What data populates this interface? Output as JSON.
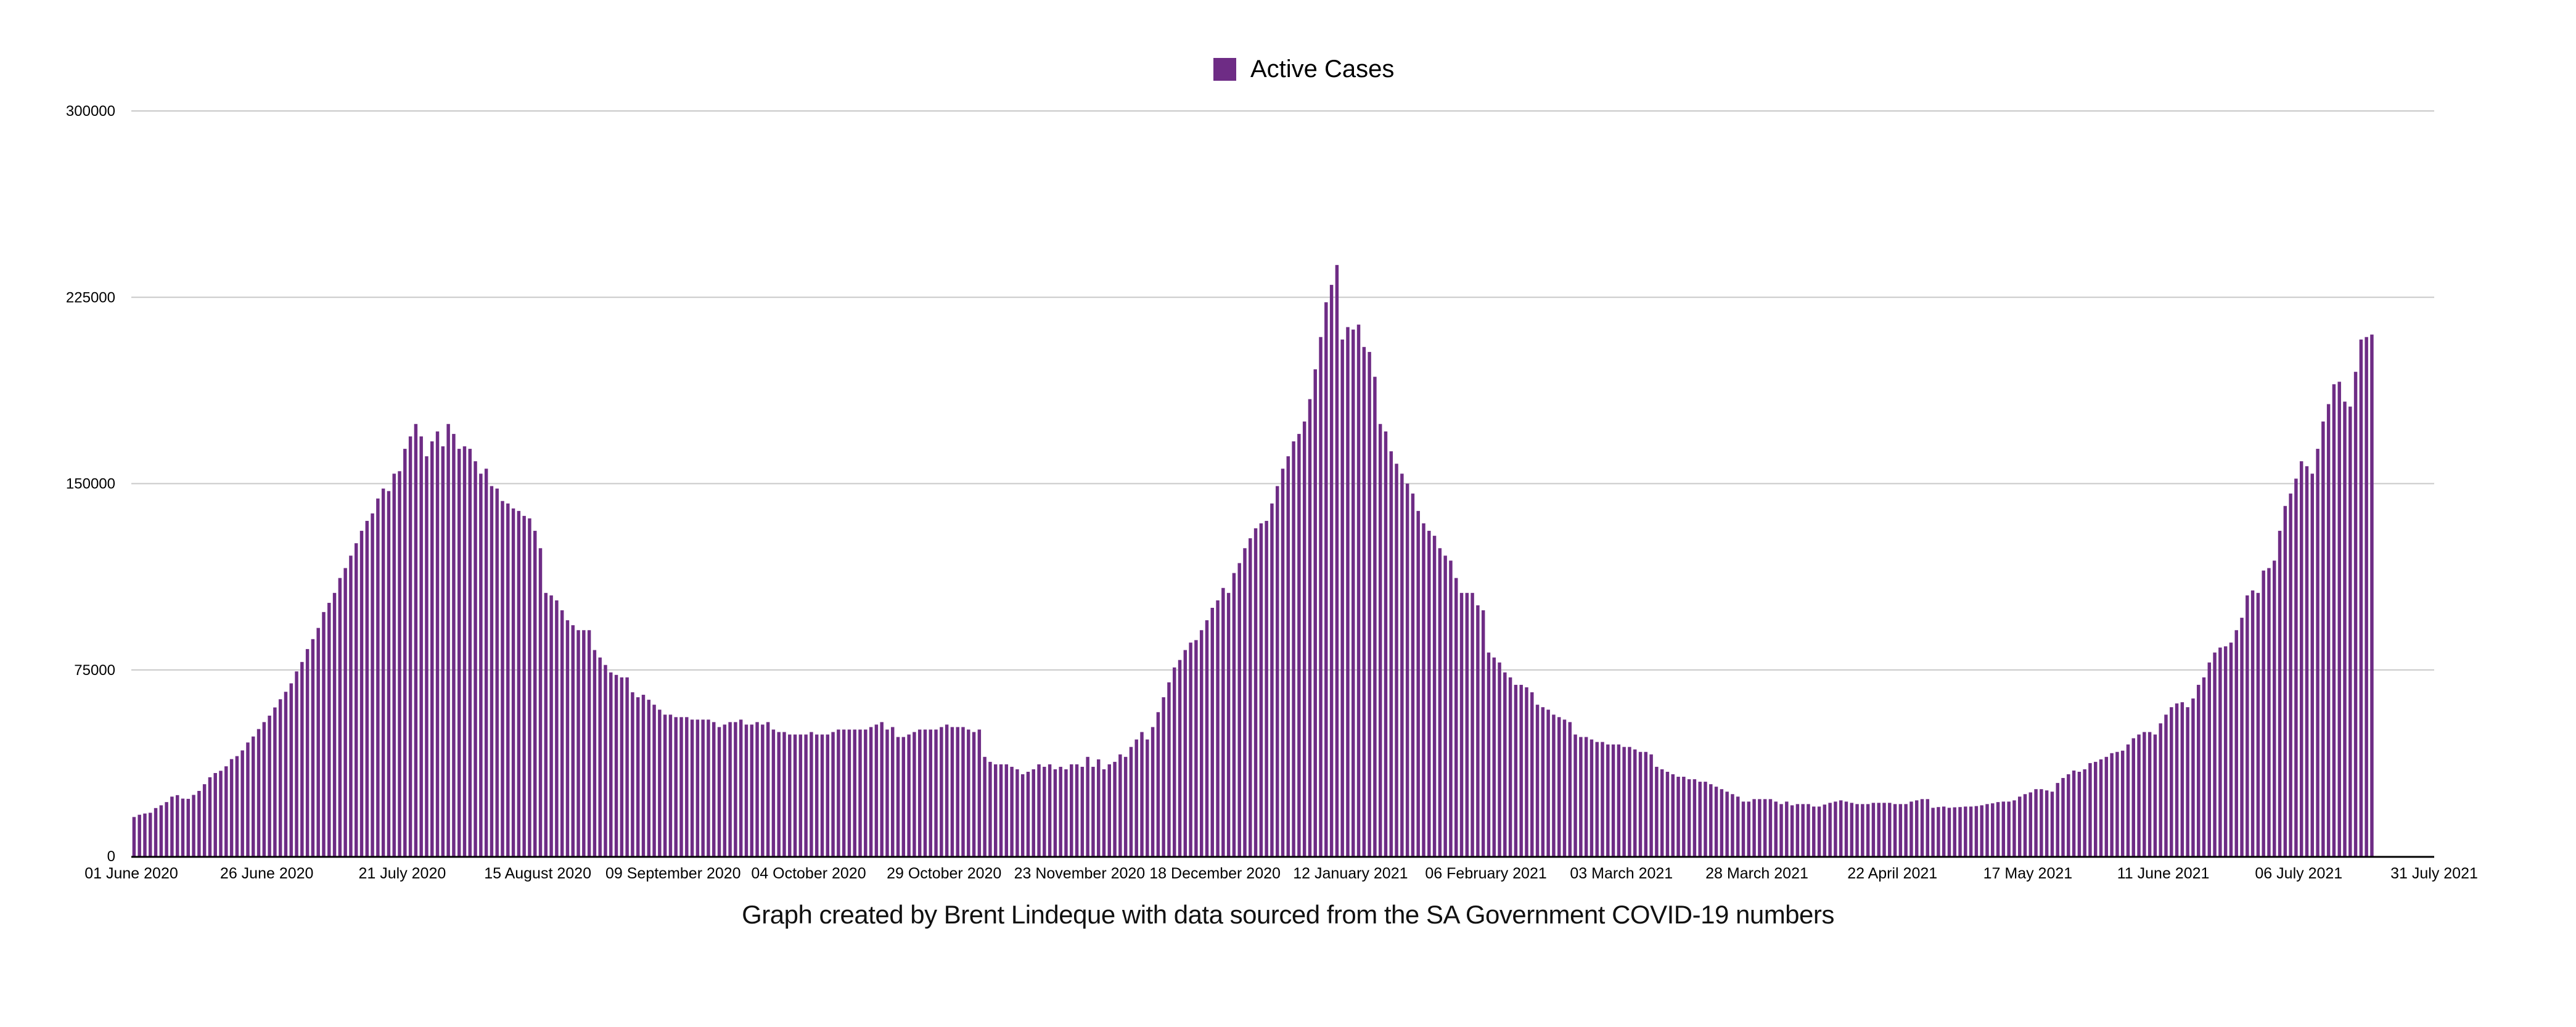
{
  "chart_data": {
    "type": "bar",
    "title": "",
    "legend": {
      "entries": [
        "Active Cases"
      ],
      "placement": "top-center"
    },
    "series_color": "#6e2c85",
    "xlabel": "",
    "ylabel": "",
    "ylim": [
      0,
      300000
    ],
    "y_ticks": [
      0,
      75000,
      150000,
      225000,
      300000
    ],
    "y_tick_labels": [
      "0",
      "75000",
      "150000",
      "225000",
      "300000"
    ],
    "grid": true,
    "x_range_days": 425,
    "x_tick_step_days": 25,
    "x_tick_labels": [
      "01 June 2020",
      "26 June 2020",
      "21 July 2020",
      "15 August 2020",
      "09 September 2020",
      "04 October 2020",
      "29 October 2020",
      "23 November 2020",
      "18 December 2020",
      "12 January 2021",
      "06 February 2021",
      "03 March 2021",
      "28 March 2021",
      "22 April 2021",
      "17 May 2021",
      "11 June 2021",
      "06 July 2021",
      "31 July 2021"
    ],
    "start_date": "01 June 2020",
    "series": [
      {
        "name": "Active Cases",
        "values": [
          15800,
          16700,
          17200,
          17500,
          19400,
          20500,
          21800,
          24000,
          24600,
          23200,
          23100,
          24700,
          26300,
          29000,
          31800,
          33500,
          34400,
          36200,
          39100,
          40300,
          42600,
          45800,
          48200,
          51200,
          54000,
          56600,
          59900,
          63200,
          66200,
          69600,
          74400,
          78200,
          83400,
          87400,
          91900,
          98300,
          102000,
          106000,
          112000,
          116000,
          121000,
          126000,
          131000,
          135000,
          138000,
          144000,
          148000,
          147000,
          154000,
          155000,
          164000,
          169000,
          174000,
          169000,
          161000,
          167000,
          171000,
          165000,
          174000,
          170000,
          164000,
          165000,
          164000,
          159000,
          154000,
          156000,
          149000,
          148000,
          143000,
          142000,
          140000,
          139000,
          137000,
          136000,
          131000,
          124000,
          106000,
          105000,
          103000,
          99000,
          95000,
          93000,
          91000,
          91000,
          91000,
          83000,
          80000,
          77000,
          74000,
          73000,
          72000,
          72000,
          66000,
          64000,
          65000,
          63000,
          61000,
          59000,
          57000,
          57000,
          56000,
          56000,
          56000,
          55000,
          55000,
          55000,
          55000,
          54000,
          52000,
          53000,
          54000,
          54000,
          55000,
          53000,
          53000,
          54000,
          53000,
          54000,
          51000,
          50000,
          50000,
          49000,
          49000,
          49000,
          49000,
          50000,
          49000,
          49000,
          49000,
          50000,
          51000,
          51000,
          51000,
          51000,
          51000,
          51000,
          52000,
          53000,
          54000,
          51000,
          52000,
          48000,
          48000,
          49000,
          50000,
          51000,
          51000,
          51000,
          51000,
          52000,
          53000,
          52000,
          52000,
          52000,
          51000,
          50000,
          51000,
          40000,
          38000,
          37000,
          37000,
          37000,
          36000,
          35000,
          33000,
          34000,
          35000,
          37000,
          36000,
          37000,
          35000,
          36000,
          35000,
          37000,
          37000,
          36000,
          40000,
          36000,
          39000,
          35000,
          37000,
          38000,
          41000,
          40000,
          44000,
          47000,
          50000,
          47000,
          52000,
          58000,
          64000,
          70000,
          76000,
          79000,
          83000,
          86000,
          87000,
          91000,
          95000,
          100000,
          103000,
          108000,
          106000,
          114000,
          118000,
          124000,
          128000,
          132000,
          134000,
          135000,
          142000,
          149000,
          156000,
          161000,
          167000,
          170000,
          175000,
          184000,
          196000,
          209000,
          223000,
          230000,
          238000,
          208000,
          213000,
          212000,
          214000,
          205000,
          203000,
          193000,
          174000,
          171000,
          163000,
          158000,
          154000,
          150000,
          146000,
          139000,
          134000,
          131000,
          129000,
          124000,
          121000,
          119000,
          112000,
          106000,
          106000,
          106000,
          101000,
          99000,
          82000,
          80000,
          78000,
          74000,
          72000,
          69000,
          69000,
          68000,
          66000,
          61000,
          60000,
          59000,
          57000,
          56000,
          55000,
          54000,
          49000,
          48000,
          48000,
          47000,
          46000,
          46000,
          45000,
          45000,
          45000,
          44000,
          44000,
          43000,
          42000,
          42000,
          41000,
          36000,
          35000,
          34000,
          33000,
          32000,
          32000,
          31000,
          31000,
          30000,
          30000,
          29000,
          28000,
          27000,
          26000,
          25000,
          24000,
          22000,
          22000,
          23000,
          23000,
          23000,
          23000,
          22000,
          21000,
          22000,
          20500,
          21000,
          21000,
          21000,
          20000,
          20000,
          20800,
          21500,
          22000,
          22500,
          22000,
          21500,
          21000,
          21000,
          21000,
          21500,
          21500,
          21500,
          21500,
          21000,
          21000,
          21000,
          22000,
          22500,
          23000,
          23000,
          19500,
          19800,
          20000,
          19500,
          19700,
          19800,
          20000,
          20000,
          20200,
          20500,
          21000,
          21300,
          21800,
          22000,
          22000,
          22500,
          24000,
          25000,
          25700,
          27000,
          27000,
          26500,
          26000,
          29500,
          31500,
          33000,
          34500,
          34000,
          35000,
          37500,
          38000,
          39000,
          40000,
          41500,
          42000,
          42500,
          45000,
          47500,
          49000,
          50000,
          50000,
          49000,
          53500,
          57000,
          60000,
          61500,
          62000,
          60000,
          63500,
          69000,
          72000,
          78000,
          82000,
          84000,
          84500,
          86000,
          91000,
          96000,
          105000,
          107000,
          106000,
          115000,
          116000,
          119000,
          131000,
          141000,
          146000,
          152000,
          159000,
          157000,
          154000,
          164000,
          175000,
          182000,
          190000,
          191000,
          183000,
          181000,
          195000,
          208000,
          209000,
          210000
        ]
      }
    ]
  },
  "legend_label": "Active Cases",
  "caption": "Graph created by Brent Lindeque with data sourced from the SA Government COVID-19 numbers"
}
